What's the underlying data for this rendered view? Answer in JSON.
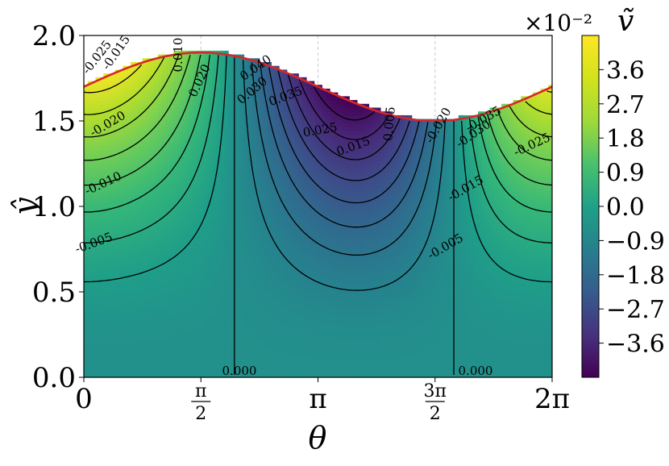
{
  "chart_data": {
    "type": "heatmap",
    "subtype": "filled-contour",
    "xlabel": "θ",
    "ylabel": "ŷ",
    "xlim": [
      0,
      6.283185
    ],
    "ylim": [
      0.0,
      2.0
    ],
    "x_ticks": [
      {
        "value": 0,
        "label": "0"
      },
      {
        "value": 1.570796,
        "numerator": "π",
        "denominator": "2"
      },
      {
        "value": 3.141593,
        "label": "π"
      },
      {
        "value": 4.712389,
        "numerator": "3π",
        "denominator": "2"
      },
      {
        "value": 6.283185,
        "label": "2π"
      }
    ],
    "y_ticks": [
      "0.0",
      "0.5",
      "1.0",
      "1.5",
      "2.0"
    ],
    "boundary": {
      "description": "upper surface y = 1.7 + 0.2·sin(θ)",
      "color": "#d62728"
    },
    "colorbar": {
      "title": "ṽ",
      "scale_label": "×10⁻²",
      "ticks": [
        "3.6",
        "2.7",
        "1.8",
        "0.9",
        "0.0",
        "−0.9",
        "−1.8",
        "−2.7",
        "−3.6"
      ],
      "range": [
        -4.5,
        4.5
      ],
      "colormap": "viridis"
    },
    "contour_levels_labeled": [
      "-0.025",
      "-0.015",
      "-0.020",
      "-0.010",
      "-0.005",
      "0.010",
      "0.020",
      "0.030",
      "0.040",
      "0.035",
      "0.025",
      "0.015",
      "0.005",
      "-0.020",
      "-0.030",
      "-0.035",
      "-0.025",
      "-0.015",
      "-0.005",
      "0.000",
      "0.000"
    ]
  }
}
